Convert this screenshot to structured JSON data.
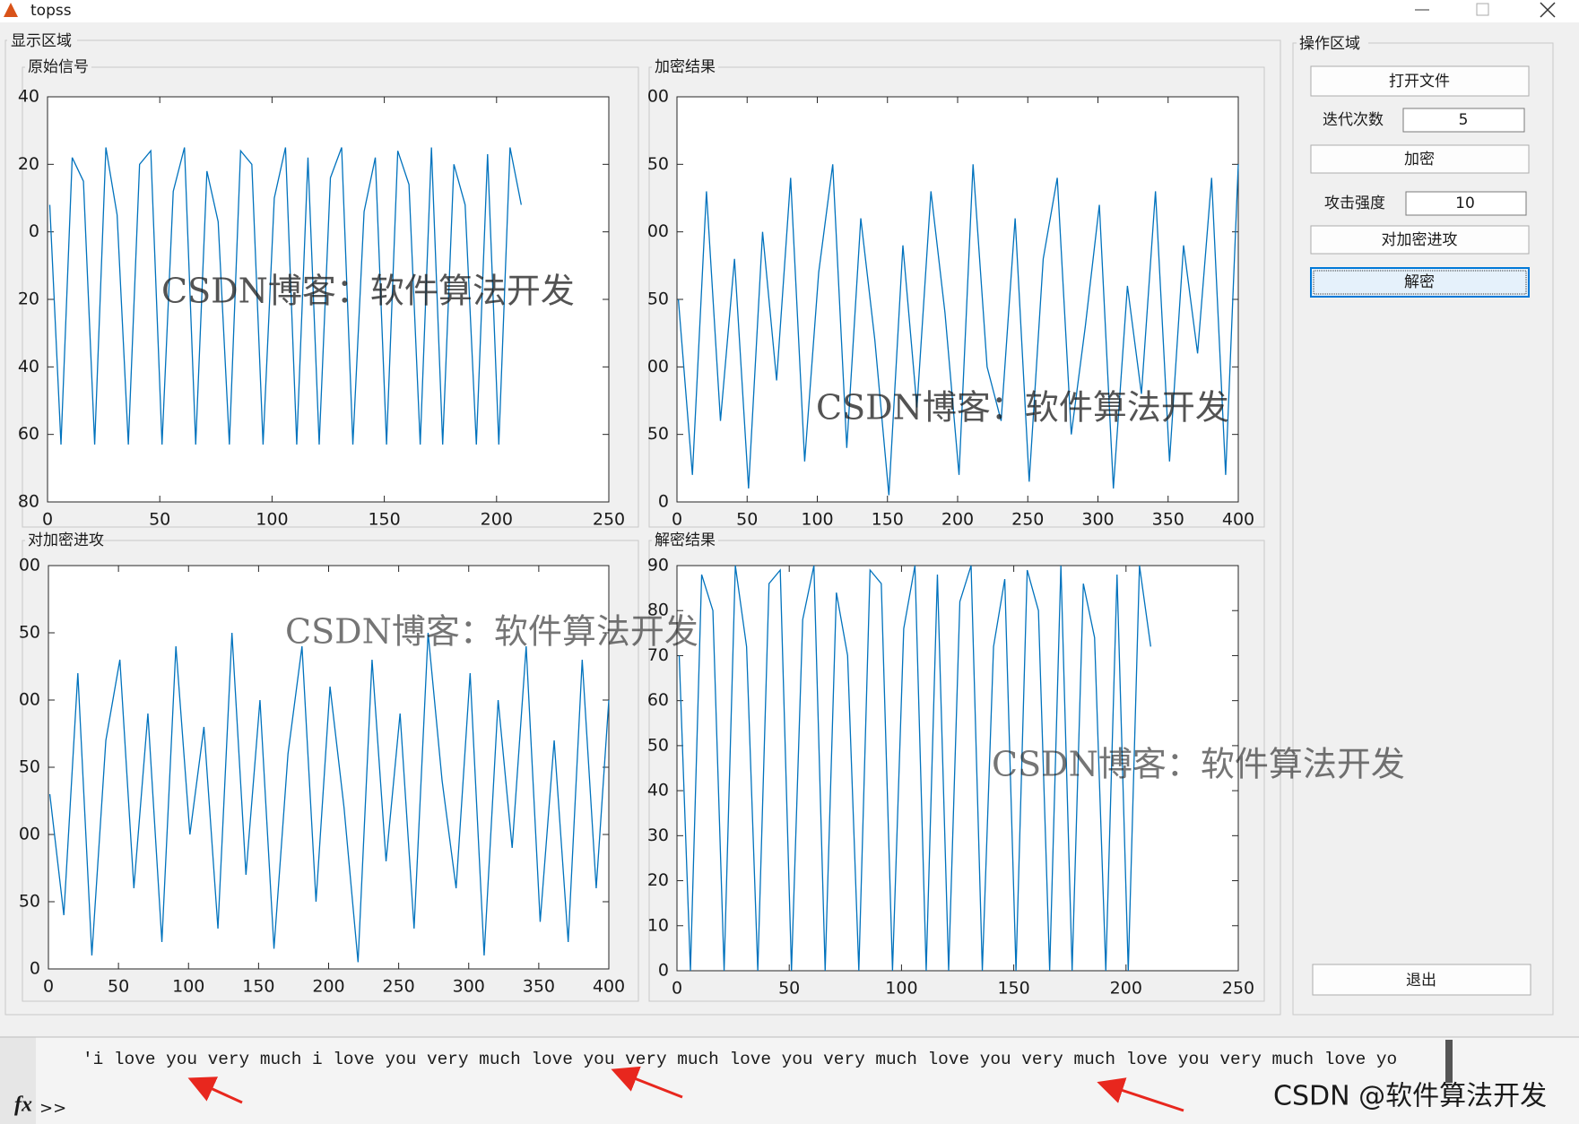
{
  "window": {
    "title": "topss"
  },
  "display_group": "显示区域",
  "chart_data": [
    {
      "type": "line",
      "title": "原始信号",
      "color": "#0072bd",
      "x": [
        1,
        6,
        11,
        16,
        21,
        26,
        31,
        36,
        41,
        46,
        51,
        56,
        61,
        66,
        71,
        76,
        81,
        86,
        91,
        96,
        101,
        106,
        111,
        116,
        121,
        126,
        131,
        136,
        141,
        146,
        151,
        156,
        161,
        166,
        171,
        176,
        181,
        186,
        191,
        196,
        201,
        206,
        211
      ],
      "values": [
        8,
        -63,
        22,
        15,
        -63,
        25,
        5,
        -63,
        20,
        24,
        -63,
        12,
        25,
        -63,
        18,
        3,
        -63,
        24,
        20,
        -63,
        10,
        25,
        -63,
        22,
        -63,
        16,
        25,
        -63,
        6,
        22,
        -63,
        24,
        14,
        -63,
        25,
        -63,
        20,
        8,
        -63,
        23,
        -63,
        25,
        8
      ],
      "xlim": [
        0,
        250
      ],
      "xticks": [
        0,
        50,
        100,
        150,
        200,
        250
      ],
      "ylim": [
        -80,
        40
      ],
      "yticks": [
        {
          "value": -80,
          "label": "80"
        },
        {
          "value": -60,
          "label": "60"
        },
        {
          "value": -40,
          "label": "40"
        },
        {
          "value": -20,
          "label": "20"
        },
        0,
        20,
        40
      ]
    },
    {
      "type": "line",
      "title": "加密结果",
      "color": "#0072bd",
      "x": [
        1,
        11,
        21,
        31,
        41,
        51,
        61,
        71,
        81,
        91,
        101,
        111,
        121,
        131,
        141,
        151,
        161,
        171,
        181,
        191,
        201,
        211,
        221,
        231,
        241,
        251,
        261,
        271,
        281,
        291,
        301,
        311,
        321,
        331,
        341,
        351,
        361,
        371,
        381,
        391,
        400
      ],
      "values": [
        150,
        20,
        230,
        60,
        180,
        10,
        200,
        90,
        240,
        30,
        170,
        250,
        40,
        210,
        120,
        5,
        190,
        70,
        230,
        140,
        20,
        250,
        100,
        60,
        210,
        15,
        180,
        240,
        50,
        130,
        220,
        10,
        160,
        80,
        230,
        30,
        190,
        110,
        240,
        20,
        250
      ],
      "xlim": [
        0,
        400
      ],
      "xticks": [
        0,
        50,
        100,
        150,
        200,
        250,
        300,
        350,
        400
      ],
      "ylim": [
        0,
        300
      ],
      "yticks": [
        0,
        50,
        {
          "value": 100,
          "label": "00"
        },
        {
          "value": 150,
          "label": "50"
        },
        {
          "value": 200,
          "label": "00"
        },
        {
          "value": 250,
          "label": "50"
        },
        {
          "value": 300,
          "label": "00"
        }
      ]
    },
    {
      "type": "line",
      "title": "对加密进攻",
      "color": "#0072bd",
      "x": [
        1,
        11,
        21,
        31,
        41,
        51,
        61,
        71,
        81,
        91,
        101,
        111,
        121,
        131,
        141,
        151,
        161,
        171,
        181,
        191,
        201,
        211,
        221,
        231,
        241,
        251,
        261,
        271,
        281,
        291,
        301,
        311,
        321,
        331,
        341,
        351,
        361,
        371,
        381,
        391,
        400
      ],
      "values": [
        130,
        40,
        220,
        10,
        170,
        230,
        60,
        190,
        20,
        240,
        100,
        180,
        30,
        250,
        70,
        200,
        15,
        160,
        240,
        50,
        210,
        120,
        5,
        230,
        80,
        190,
        30,
        250,
        140,
        60,
        220,
        10,
        200,
        90,
        240,
        35,
        170,
        20,
        230,
        60,
        200
      ],
      "xlim": [
        0,
        400
      ],
      "xticks": [
        0,
        50,
        100,
        150,
        200,
        250,
        300,
        350,
        400
      ],
      "ylim": [
        0,
        300
      ],
      "yticks": [
        0,
        50,
        {
          "value": 100,
          "label": "00"
        },
        {
          "value": 150,
          "label": "50"
        },
        {
          "value": 200,
          "label": "00"
        },
        {
          "value": 250,
          "label": "50"
        },
        {
          "value": 300,
          "label": "00"
        }
      ]
    },
    {
      "type": "line",
      "title": "解密结果",
      "color": "#0072bd",
      "x": [
        1,
        6,
        11,
        16,
        21,
        26,
        31,
        36,
        41,
        46,
        51,
        56,
        61,
        66,
        71,
        76,
        81,
        86,
        91,
        96,
        101,
        106,
        111,
        116,
        121,
        126,
        131,
        136,
        141,
        146,
        151,
        156,
        161,
        166,
        171,
        176,
        181,
        186,
        191,
        196,
        201,
        206,
        211
      ],
      "values": [
        70,
        0,
        88,
        80,
        0,
        90,
        72,
        0,
        86,
        89,
        0,
        78,
        90,
        0,
        84,
        70,
        0,
        89,
        86,
        0,
        76,
        90,
        0,
        88,
        0,
        82,
        90,
        0,
        72,
        87,
        0,
        89,
        80,
        0,
        90,
        0,
        86,
        74,
        0,
        88,
        0,
        90,
        72
      ],
      "xlim": [
        0,
        250
      ],
      "xticks": [
        0,
        50,
        100,
        150,
        200,
        250
      ],
      "ylim": [
        0,
        90
      ],
      "yticks": [
        0,
        10,
        20,
        30,
        40,
        50,
        60,
        70,
        80,
        90
      ]
    }
  ],
  "controls": {
    "group": "操作区域",
    "open_button": "打开文件",
    "iter_label": "迭代次数",
    "iter_value": "5",
    "encrypt_button": "加密",
    "attack_label": "攻击强度",
    "attack_value": "10",
    "attack_button": "对加密进攻",
    "decrypt_button": "解密",
    "exit_button": "退出"
  },
  "watermarks": [
    "CSDN博客：软件算法开发",
    "CSDN博客：软件算法开发",
    "CSDN博客：软件算法开发",
    "CSDN博客：软件算法开发"
  ],
  "command": {
    "output": "'i love you very much i love you very much love you very much love you very much love you very much love you very much love yo",
    "fx": "fx",
    "prompt": ">>"
  },
  "footer_watermark": "CSDN @软件算法开发"
}
